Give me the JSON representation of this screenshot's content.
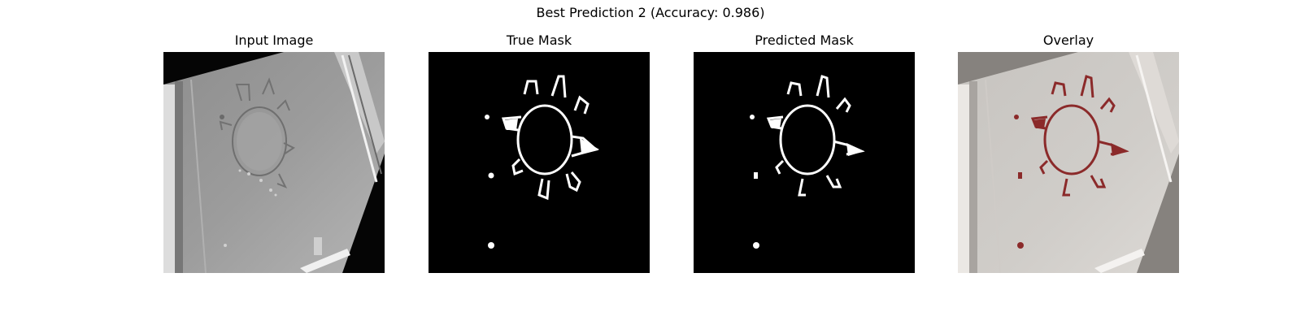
{
  "figure": {
    "title": "Best Prediction 2 (Accuracy: 0.986)"
  },
  "panels": [
    {
      "title": "Input Image"
    },
    {
      "title": "True Mask"
    },
    {
      "title": "Predicted Mask"
    },
    {
      "title": "Overlay"
    }
  ],
  "colors": {
    "mask": "#ffffff",
    "mask_background": "#000000",
    "overlay_mask": "#8b2a2a"
  }
}
